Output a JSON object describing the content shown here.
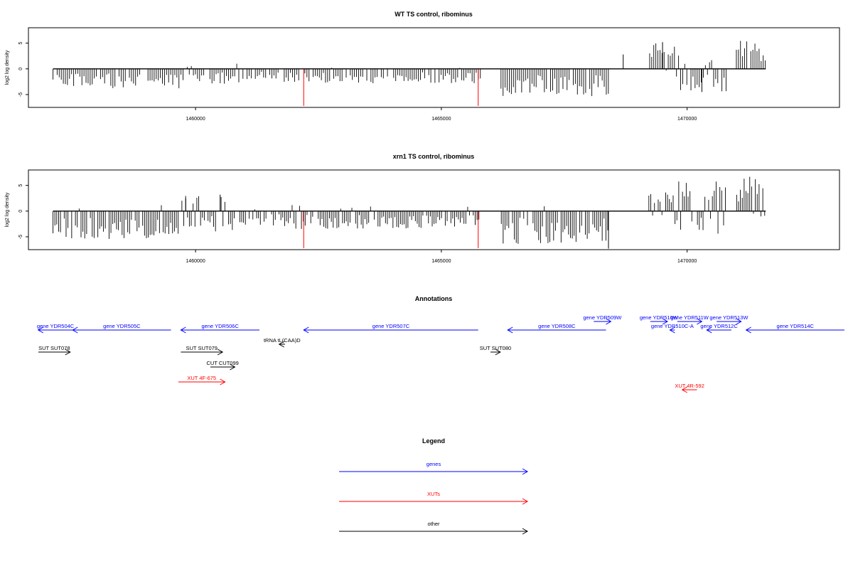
{
  "chart_data": [
    {
      "type": "bar",
      "title": "WT TS control, ribominus",
      "ylabel": "log2 log density",
      "xlim": [
        1456600,
        1473100
      ],
      "ylim": [
        -7.5,
        8
      ],
      "xticks": [
        1460000,
        1465000,
        1470000
      ],
      "yticks": [
        -5,
        0,
        5
      ],
      "grid": false,
      "bar_series": {
        "x_start": 1457100,
        "x_end": 1471600,
        "step": 42,
        "seed": 11,
        "color": "#000000"
      },
      "density_profile": [
        {
          "x_start": 1457100,
          "x_end": 1459700,
          "neg_max": 3.8,
          "pos_max": 0.3,
          "pos_prob": 0.03
        },
        {
          "x_start": 1459700,
          "x_end": 1460900,
          "neg_max": 3.0,
          "pos_max": 1.5,
          "pos_prob": 0.12
        },
        {
          "x_start": 1460900,
          "x_end": 1461800,
          "neg_max": 2.0,
          "pos_max": 0.3,
          "pos_prob": 0.03
        },
        {
          "x_start": 1461800,
          "x_end": 1465800,
          "neg_max": 2.8,
          "pos_max": 0.3,
          "pos_prob": 0.03
        },
        {
          "x_start": 1466200,
          "x_end": 1468400,
          "neg_max": 5.3,
          "pos_max": 0.0,
          "pos_prob": 0.0
        },
        {
          "x_start": 1469200,
          "x_end": 1469750,
          "neg_max": 0.5,
          "pos_max": 5.3,
          "pos_prob": 0.85
        },
        {
          "x_start": 1469750,
          "x_end": 1470800,
          "neg_max": 4.5,
          "pos_max": 2.8,
          "pos_prob": 0.25
        },
        {
          "x_start": 1471000,
          "x_end": 1471600,
          "neg_max": 0.3,
          "pos_max": 5.5,
          "pos_prob": 0.95
        }
      ],
      "spikes": [
        {
          "x": 1462200,
          "y": -7.2,
          "color": "#ff0000"
        },
        {
          "x": 1465750,
          "y": -7.2,
          "color": "#ff0000"
        },
        {
          "x": 1468700,
          "y": 2.8,
          "color": "#000000"
        },
        {
          "x": 1469500,
          "y": 5.2,
          "color": "#000000"
        },
        {
          "x": 1470300,
          "y": -4.5,
          "color": "#000000"
        }
      ]
    },
    {
      "type": "bar",
      "title": "xrn1 TS control, ribominus",
      "ylabel": "log2 log density",
      "xlim": [
        1456600,
        1473100
      ],
      "ylim": [
        -7.5,
        8
      ],
      "xticks": [
        1460000,
        1465000,
        1470000
      ],
      "yticks": [
        -5,
        0,
        5
      ],
      "grid": false,
      "bar_series": {
        "x_start": 1457100,
        "x_end": 1471600,
        "step": 38,
        "seed": 29,
        "color": "#000000"
      },
      "density_profile": [
        {
          "x_start": 1457100,
          "x_end": 1459700,
          "neg_max": 5.5,
          "pos_max": 1.8,
          "pos_prob": 0.05
        },
        {
          "x_start": 1459700,
          "x_end": 1460900,
          "neg_max": 4.0,
          "pos_max": 3.0,
          "pos_prob": 0.3
        },
        {
          "x_start": 1460900,
          "x_end": 1461800,
          "neg_max": 3.0,
          "pos_max": 1.0,
          "pos_prob": 0.1
        },
        {
          "x_start": 1461800,
          "x_end": 1465800,
          "neg_max": 3.5,
          "pos_max": 1.5,
          "pos_prob": 0.05
        },
        {
          "x_start": 1466200,
          "x_end": 1468400,
          "neg_max": 6.5,
          "pos_max": 1.0,
          "pos_prob": 0.02
        },
        {
          "x_start": 1469200,
          "x_end": 1469750,
          "neg_max": 1.0,
          "pos_max": 3.8,
          "pos_prob": 0.85
        },
        {
          "x_start": 1469750,
          "x_end": 1470800,
          "neg_max": 4.5,
          "pos_max": 6.0,
          "pos_prob": 0.45
        },
        {
          "x_start": 1471000,
          "x_end": 1471600,
          "neg_max": 1.5,
          "pos_max": 7.0,
          "pos_prob": 0.9
        }
      ],
      "spikes": [
        {
          "x": 1462200,
          "y": -7.2,
          "color": "#ff0000"
        },
        {
          "x": 1465750,
          "y": -7.2,
          "color": "#ff0000"
        },
        {
          "x": 1460500,
          "y": 3.2,
          "color": "#000000"
        },
        {
          "x": 1459800,
          "y": 2.5,
          "color": "#000000"
        },
        {
          "x": 1468400,
          "y": -7.3,
          "color": "#000000"
        }
      ]
    }
  ],
  "annotations": {
    "title": "Annotations",
    "xlim": [
      1456600,
      1473100
    ],
    "features": [
      {
        "label": "gene YDR504C",
        "x_start": 1456800,
        "x_end": 1457500,
        "strand": "-",
        "row": 2,
        "color": "#0000ff"
      },
      {
        "label": "gene YDR505C",
        "x_start": 1457500,
        "x_end": 1459500,
        "strand": "-",
        "row": 2,
        "color": "#0000ff"
      },
      {
        "label": "gene YDR506C",
        "x_start": 1459700,
        "x_end": 1461300,
        "strand": "-",
        "row": 2,
        "color": "#0000ff"
      },
      {
        "label": "gene YDR507C",
        "x_start": 1462200,
        "x_end": 1465750,
        "strand": "-",
        "row": 2,
        "color": "#0000ff"
      },
      {
        "label": "gene YDR508C",
        "x_start": 1466350,
        "x_end": 1468350,
        "strand": "-",
        "row": 2,
        "color": "#0000ff"
      },
      {
        "label": "gene YDR509W",
        "x_start": 1468100,
        "x_end": 1468450,
        "strand": "+",
        "row": 1,
        "color": "#0000ff"
      },
      {
        "label": "gene YDR510W",
        "x_start": 1469250,
        "x_end": 1469600,
        "strand": "+",
        "row": 1,
        "color": "#0000ff"
      },
      {
        "label": "gene YDR510C-A",
        "x_start": 1469650,
        "x_end": 1469750,
        "strand": "-",
        "row": 2,
        "color": "#0000ff"
      },
      {
        "label": "gene YDR511W",
        "x_start": 1469800,
        "x_end": 1470300,
        "strand": "+",
        "row": 1,
        "color": "#0000ff"
      },
      {
        "label": "gene YDR512C",
        "x_start": 1470400,
        "x_end": 1470900,
        "strand": "-",
        "row": 2,
        "color": "#0000ff"
      },
      {
        "label": "gene YDR513W",
        "x_start": 1470600,
        "x_end": 1471100,
        "strand": "+",
        "row": 1,
        "color": "#0000ff"
      },
      {
        "label": "gene YDR514C",
        "x_start": 1471200,
        "x_end": 1473200,
        "strand": "-",
        "row": 2,
        "color": "#0000ff"
      },
      {
        "label": "tRNA tL(CAA)D",
        "x_start": 1461700,
        "x_end": 1461820,
        "strand": "-",
        "row": 3,
        "color": "#000000"
      },
      {
        "label": "SUT SUT078",
        "x_start": 1456800,
        "x_end": 1457450,
        "strand": "+",
        "row": 4,
        "color": "#000000"
      },
      {
        "label": "SUT SUT079",
        "x_start": 1459700,
        "x_end": 1460550,
        "strand": "+",
        "row": 4,
        "color": "#000000"
      },
      {
        "label": "SUT SUT080",
        "x_start": 1466000,
        "x_end": 1466200,
        "strand": "+",
        "row": 4,
        "color": "#000000"
      },
      {
        "label": "CUT CUT099",
        "x_start": 1460300,
        "x_end": 1460800,
        "strand": "+",
        "row": 5,
        "color": "#000000"
      },
      {
        "label": "XUT 4F-675",
        "x_start": 1459650,
        "x_end": 1460600,
        "strand": "+",
        "row": 6,
        "color": "#ff0000"
      },
      {
        "label": "XUT 4R-592",
        "x_start": 1469900,
        "x_end": 1470200,
        "strand": "-",
        "row": 7,
        "color": "#ff0000"
      }
    ]
  },
  "legend": {
    "title": "Legend",
    "items": [
      {
        "label": "genes",
        "color": "#0000ff"
      },
      {
        "label": "XUTs",
        "color": "#ff0000"
      },
      {
        "label": "other",
        "color": "#000000"
      }
    ]
  }
}
